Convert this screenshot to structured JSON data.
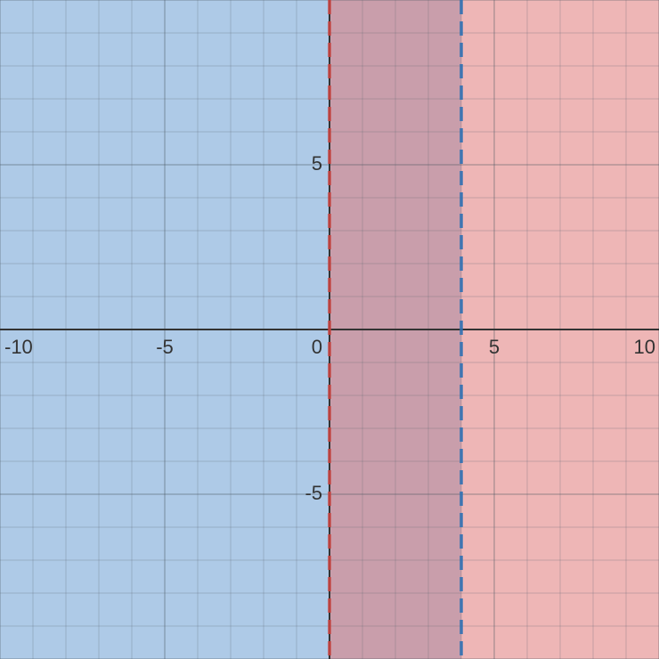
{
  "chart_data": {
    "type": "area",
    "title": "",
    "xlabel": "",
    "ylabel": "",
    "xlim": [
      -10,
      10
    ],
    "ylim": [
      -10,
      10
    ],
    "grid": true,
    "major_grid_step": 5,
    "minor_grid_step": 1,
    "x_tick_labels": [
      {
        "value": -10,
        "label": "-10"
      },
      {
        "value": -5,
        "label": "-5"
      },
      {
        "value": 0,
        "label": "0"
      },
      {
        "value": 5,
        "label": "5"
      },
      {
        "value": 10,
        "label": "10"
      }
    ],
    "y_tick_labels": [
      {
        "value": 5,
        "label": "5"
      },
      {
        "value": -5,
        "label": "-5"
      }
    ],
    "series": [
      {
        "kind": "x-less-than",
        "boundary_x": 4,
        "boundary_style": "dashed",
        "fill_color": "#6b9ed3",
        "line_color": "#2d70b3"
      },
      {
        "kind": "x-greater-than",
        "boundary_x": 0,
        "boundary_style": "dashed",
        "fill_color": "#e07a7a",
        "line_color": "#c74440"
      }
    ],
    "colors": {
      "background": "#ffffff",
      "minor_grid": "#d9d9d9",
      "major_grid": "#bcbcbc",
      "axis": "#333333",
      "overlap_fill": "#8c7e9b"
    }
  }
}
